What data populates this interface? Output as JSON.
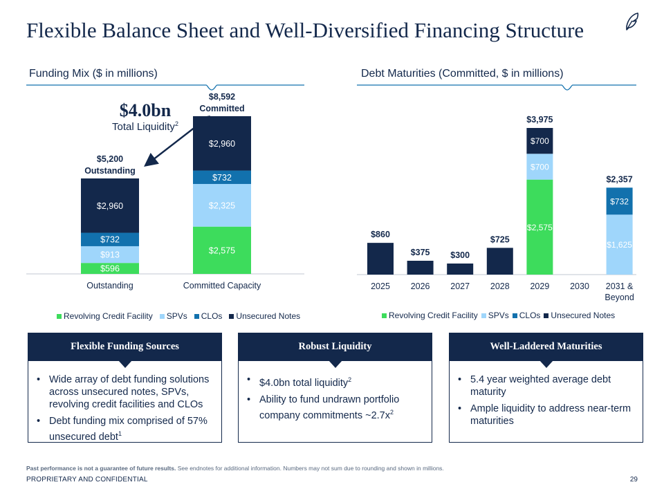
{
  "title": "Flexible Balance Sheet and Well-Diversified Financing Structure",
  "left_section": {
    "heading": "Funding Mix ($ in millions)"
  },
  "right_section": {
    "heading": "Debt Maturities (Committed, $ in millions)"
  },
  "liquidity": {
    "value": "$4.0bn",
    "label": "Total Liquidity",
    "label_sup": "2"
  },
  "colors": {
    "revolving": "#3ddc5c",
    "spvs": "#9fd6fb",
    "clos": "#1271ad",
    "unsecured": "#13284b",
    "navy": "#13284b"
  },
  "legend": [
    {
      "label": "Revolving Credit Facility",
      "color": "#3ddc5c"
    },
    {
      "label": "SPVs",
      "color": "#9fd6fb"
    },
    {
      "label": "CLOs",
      "color": "#1271ad"
    },
    {
      "label": "Unsecured Notes",
      "color": "#13284b"
    }
  ],
  "chart_data": [
    {
      "type": "bar",
      "stacked": true,
      "title": "Funding Mix ($ in millions)",
      "categories": [
        "Outstanding",
        "Committed Capacity"
      ],
      "series": [
        {
          "name": "Revolving Credit Facility",
          "values": [
            596,
            2575
          ],
          "labels": [
            "$596",
            "$2,575"
          ]
        },
        {
          "name": "SPVs",
          "values": [
            913,
            2325
          ],
          "labels": [
            "$913",
            "$2,325"
          ]
        },
        {
          "name": "CLOs",
          "values": [
            732,
            732
          ],
          "labels": [
            "$732",
            "$732"
          ]
        },
        {
          "name": "Unsecured Notes",
          "values": [
            2960,
            2960
          ],
          "labels": [
            "$2,960",
            "$2,960"
          ]
        }
      ],
      "totals": [
        {
          "amount": "$5,200",
          "caption": "Outstanding"
        },
        {
          "amount": "$8,592",
          "caption": "Committed"
        }
      ],
      "ylim": [
        0,
        8592
      ],
      "legend_position": "bottom"
    },
    {
      "type": "bar",
      "stacked": true,
      "title": "Debt Maturities (Committed, $ in millions)",
      "categories": [
        "2025",
        "2026",
        "2027",
        "2028",
        "2029",
        "2030",
        "2031 & Beyond"
      ],
      "series": [
        {
          "name": "Revolving Credit Facility",
          "values": [
            0,
            0,
            0,
            0,
            2575,
            0,
            0
          ],
          "labels": [
            "",
            "",
            "",
            "",
            "$2,575",
            "",
            ""
          ]
        },
        {
          "name": "SPVs",
          "values": [
            0,
            0,
            0,
            0,
            700,
            0,
            1625
          ],
          "labels": [
            "",
            "",
            "",
            "",
            "$700",
            "",
            "$1,625"
          ]
        },
        {
          "name": "CLOs",
          "values": [
            0,
            0,
            0,
            0,
            0,
            0,
            732
          ],
          "labels": [
            "",
            "",
            "",
            "",
            "",
            "",
            "$732"
          ]
        },
        {
          "name": "Unsecured Notes",
          "values": [
            860,
            375,
            300,
            725,
            700,
            0,
            0
          ],
          "labels": [
            "",
            "",
            "",
            "",
            "$700",
            "",
            ""
          ]
        }
      ],
      "totals": [
        "$860",
        "$375",
        "$300",
        "$725",
        "$3,975",
        "",
        "$2,357"
      ],
      "ylim": [
        0,
        3975
      ],
      "legend_position": "bottom"
    }
  ],
  "boxes": [
    {
      "title": "Flexible Funding Sources",
      "bullets": [
        {
          "text": "Wide array of debt funding solutions across unsecured notes, SPVs, revolving credit facilities and CLOs",
          "sup": ""
        },
        {
          "text": "Debt funding mix comprised of 57% unsecured debt",
          "sup": "1"
        }
      ]
    },
    {
      "title": "Robust Liquidity",
      "bullets": [
        {
          "text": "$4.0bn total liquidity",
          "sup": "2"
        },
        {
          "text": "Ability to fund undrawn portfolio company commitments ~2.7x",
          "sup": "2"
        }
      ]
    },
    {
      "title": "Well-Laddered Maturities",
      "bullets": [
        {
          "text": "5.4 year weighted average debt maturity",
          "sup": ""
        },
        {
          "text": "Ample liquidity to address near-term maturities",
          "sup": ""
        }
      ]
    }
  ],
  "footnote": {
    "bold": "Past performance is not a guarantee of future results.",
    "text": " See endnotes for additional information. Numbers may not sum due to rounding and shown in millions."
  },
  "footer": {
    "left": "PROPRIETARY AND CONFIDENTIAL",
    "page": "29"
  }
}
